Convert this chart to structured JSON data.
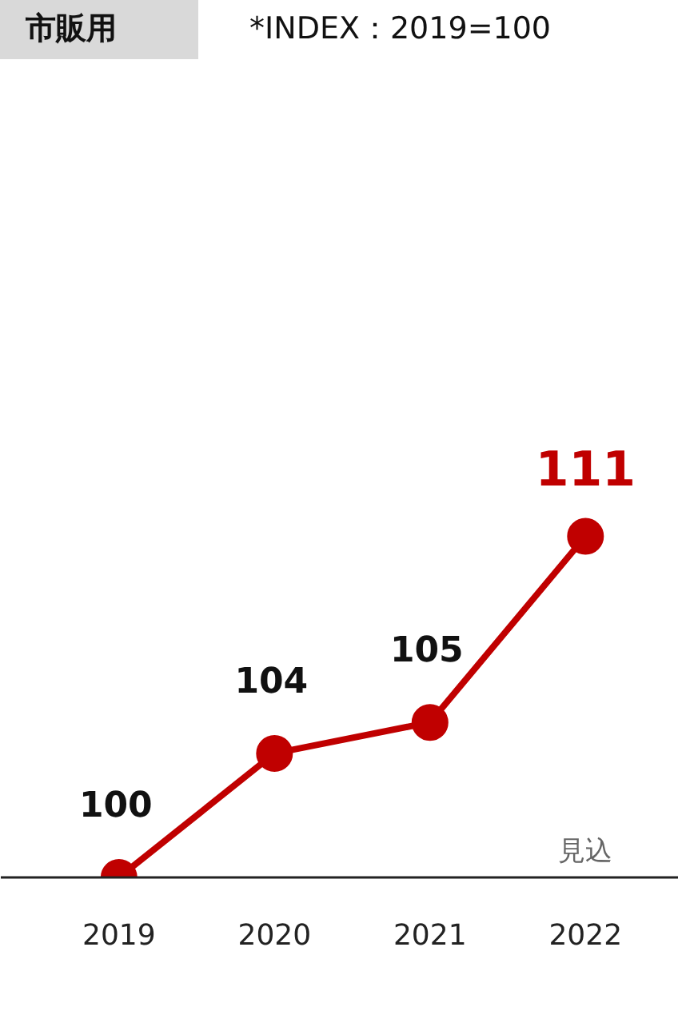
{
  "chart_data": {
    "type": "line",
    "title": "市販用",
    "subtitle": "*INDEX：2019=100",
    "categories": [
      "2019",
      "2020",
      "2021",
      "2022"
    ],
    "series": [
      {
        "color": "#c00000",
        "values": [
          100,
          104,
          105,
          111
        ]
      }
    ],
    "data_labels": true,
    "marker": "circle",
    "line_style": "solid",
    "tick_labels": "x",
    "annotations": [
      "見込"
    ]
  }
}
